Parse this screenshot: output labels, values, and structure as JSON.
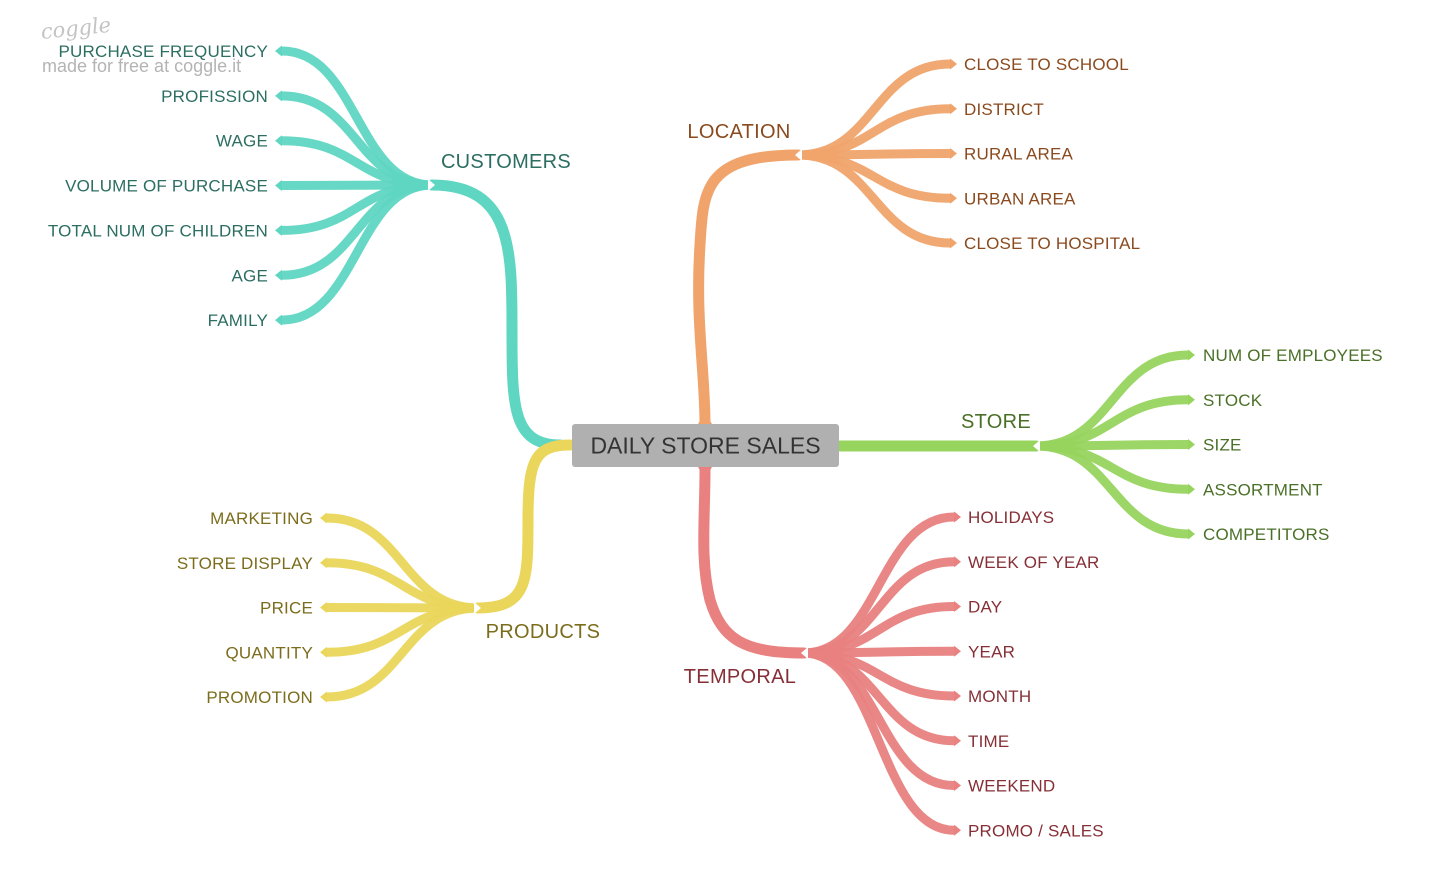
{
  "watermark": {
    "logo": "coggle",
    "line": "made for free at coggle.it"
  },
  "root": {
    "label": "DAILY STORE SALES",
    "fill": "#b0b0b0"
  },
  "branches": [
    {
      "id": "customers",
      "label": "CUSTOMERS",
      "color": "#5fd6c2",
      "text_color": "#2c6e62",
      "children": [
        "PURCHASE FREQUENCY",
        "PROFISSION",
        "WAGE",
        "VOLUME OF PURCHASE",
        "TOTAL NUM OF CHILDREN",
        "AGE",
        "FAMILY"
      ]
    },
    {
      "id": "location",
      "label": "LOCATION",
      "color": "#f0a46c",
      "text_color": "#8a4a1e",
      "children": [
        "CLOSE TO SCHOOL",
        "DISTRICT",
        "RURAL AREA",
        "URBAN AREA",
        "CLOSE TO HOSPITAL"
      ]
    },
    {
      "id": "store",
      "label": "STORE",
      "color": "#97d45e",
      "text_color": "#4a7028",
      "children": [
        "NUM OF EMPLOYEES",
        "STOCK",
        "SIZE",
        "ASSORTMENT",
        "COMPETITORS"
      ]
    },
    {
      "id": "products",
      "label": "PRODUCTS",
      "color": "#ead65a",
      "text_color": "#7c6d1c",
      "children": [
        "MARKETING",
        "STORE DISPLAY",
        "PRICE",
        "QUANTITY",
        "PROMOTION"
      ]
    },
    {
      "id": "temporal",
      "label": "TEMPORAL",
      "color": "#e8817f",
      "text_color": "#862f36",
      "children": [
        "HOLIDAYS",
        "WEEK OF YEAR",
        "DAY",
        "YEAR",
        "MONTH",
        "TIME",
        "WEEKEND",
        "PROMO / SALES"
      ]
    }
  ]
}
